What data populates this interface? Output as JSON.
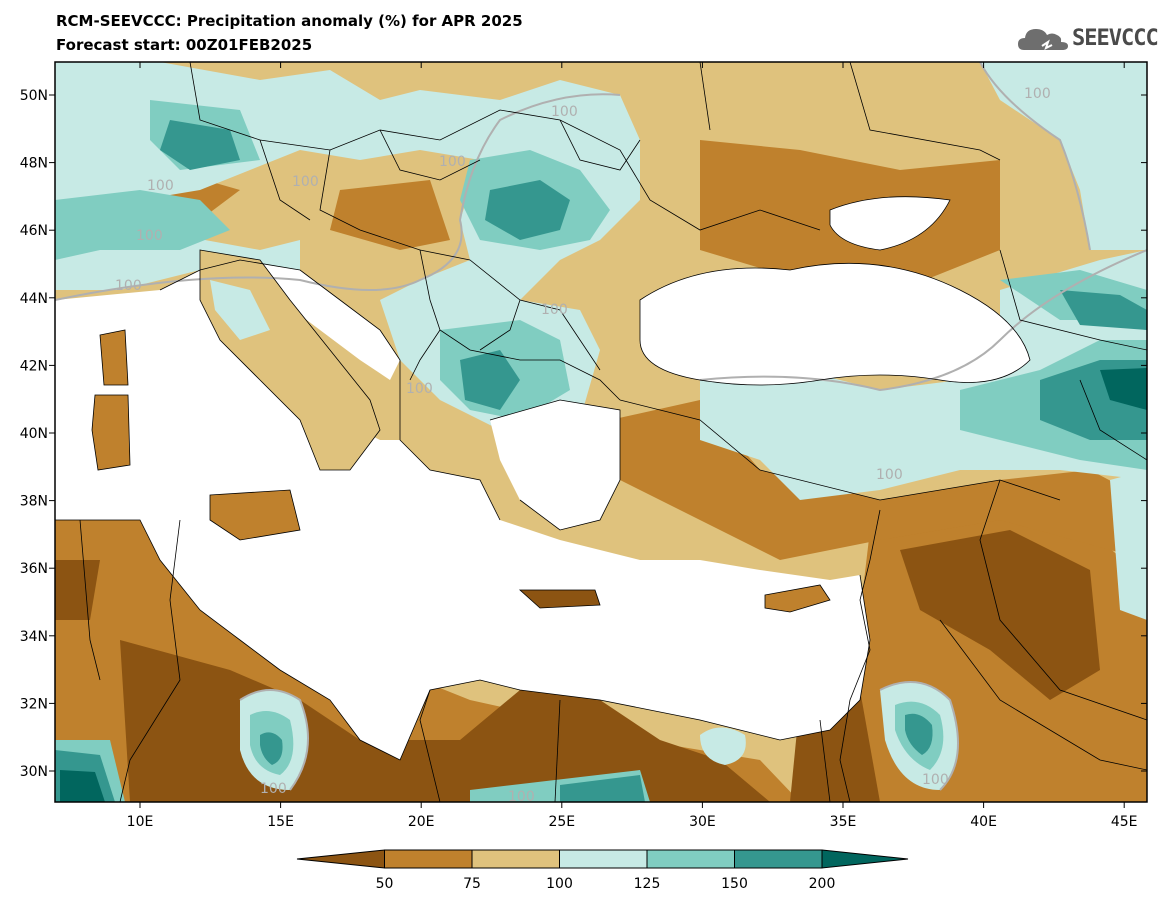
{
  "header": {
    "title": "RCM-SEEVCCC: Precipitation anomaly (%) for APR 2025",
    "subtitle": "Forecast start: 00Z01FEB2025"
  },
  "logo": {
    "text": "SEEVCCC",
    "icon": "cloud-logo-icon"
  },
  "map": {
    "lat_labels": [
      "50N",
      "48N",
      "46N",
      "44N",
      "42N",
      "40N",
      "38N",
      "36N",
      "34N",
      "32N",
      "30N"
    ],
    "lon_labels": [
      "10E",
      "15E",
      "20E",
      "25E",
      "30E",
      "35E",
      "40E",
      "45E"
    ],
    "contour_label": "100"
  },
  "legend": {
    "ticks": [
      "50",
      "75",
      "100",
      "125",
      "150",
      "200"
    ],
    "colors": [
      "#8c5412",
      "#bf812d",
      "#dfc27d",
      "#c7eae5",
      "#80cdc1",
      "#35978f",
      "#01665e"
    ]
  }
}
